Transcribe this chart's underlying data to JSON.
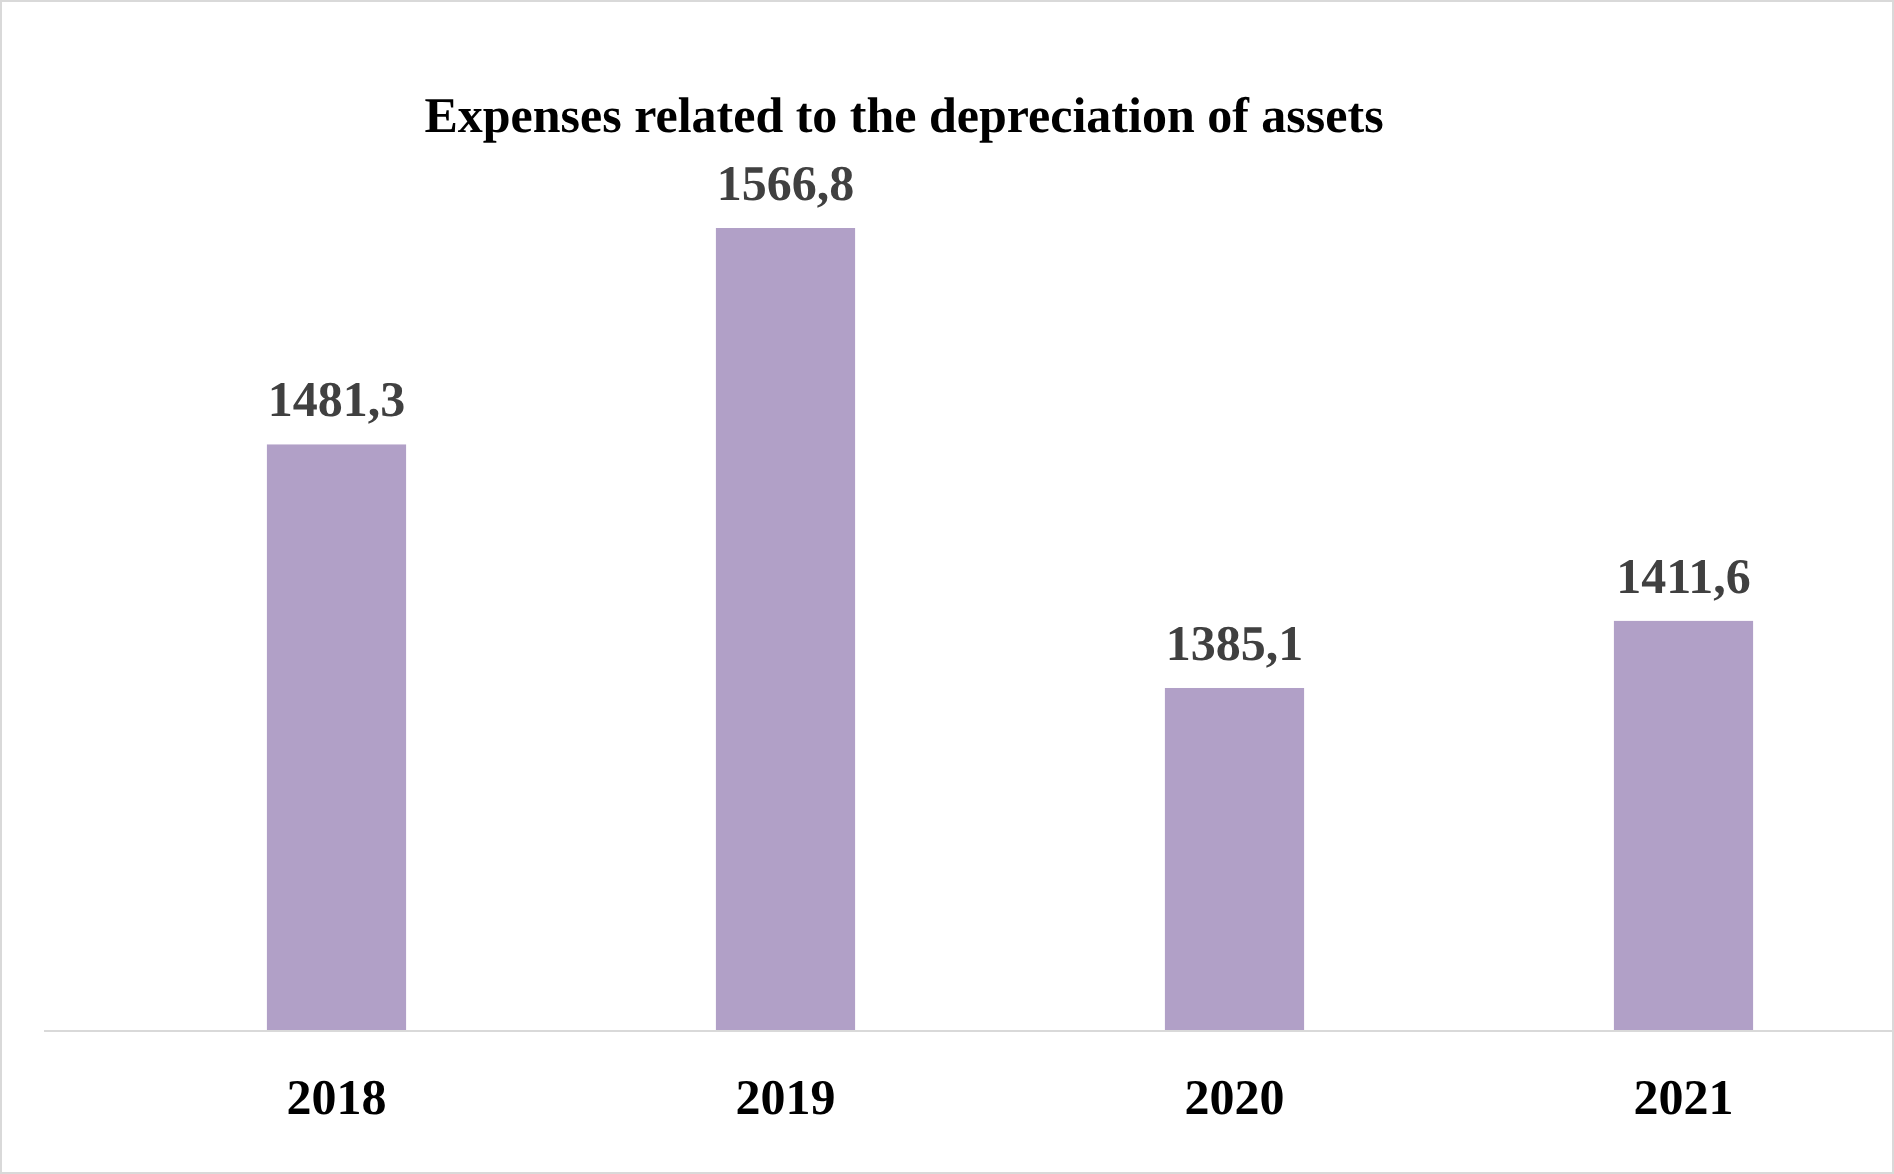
{
  "chart_data": {
    "type": "bar",
    "title": "Expenses related to the depreciation of assets",
    "categories": [
      "2018",
      "2019",
      "2020",
      "2021"
    ],
    "values": [
      1481.3,
      1566.8,
      1385.1,
      1411.6
    ],
    "value_labels": [
      "1481,3",
      "1566,8",
      "1385,1",
      "1411,6"
    ],
    "color": "#b1a0c7",
    "ylim": [
      1250,
      1566.8
    ],
    "tick_labels": "x",
    "grid": false
  }
}
